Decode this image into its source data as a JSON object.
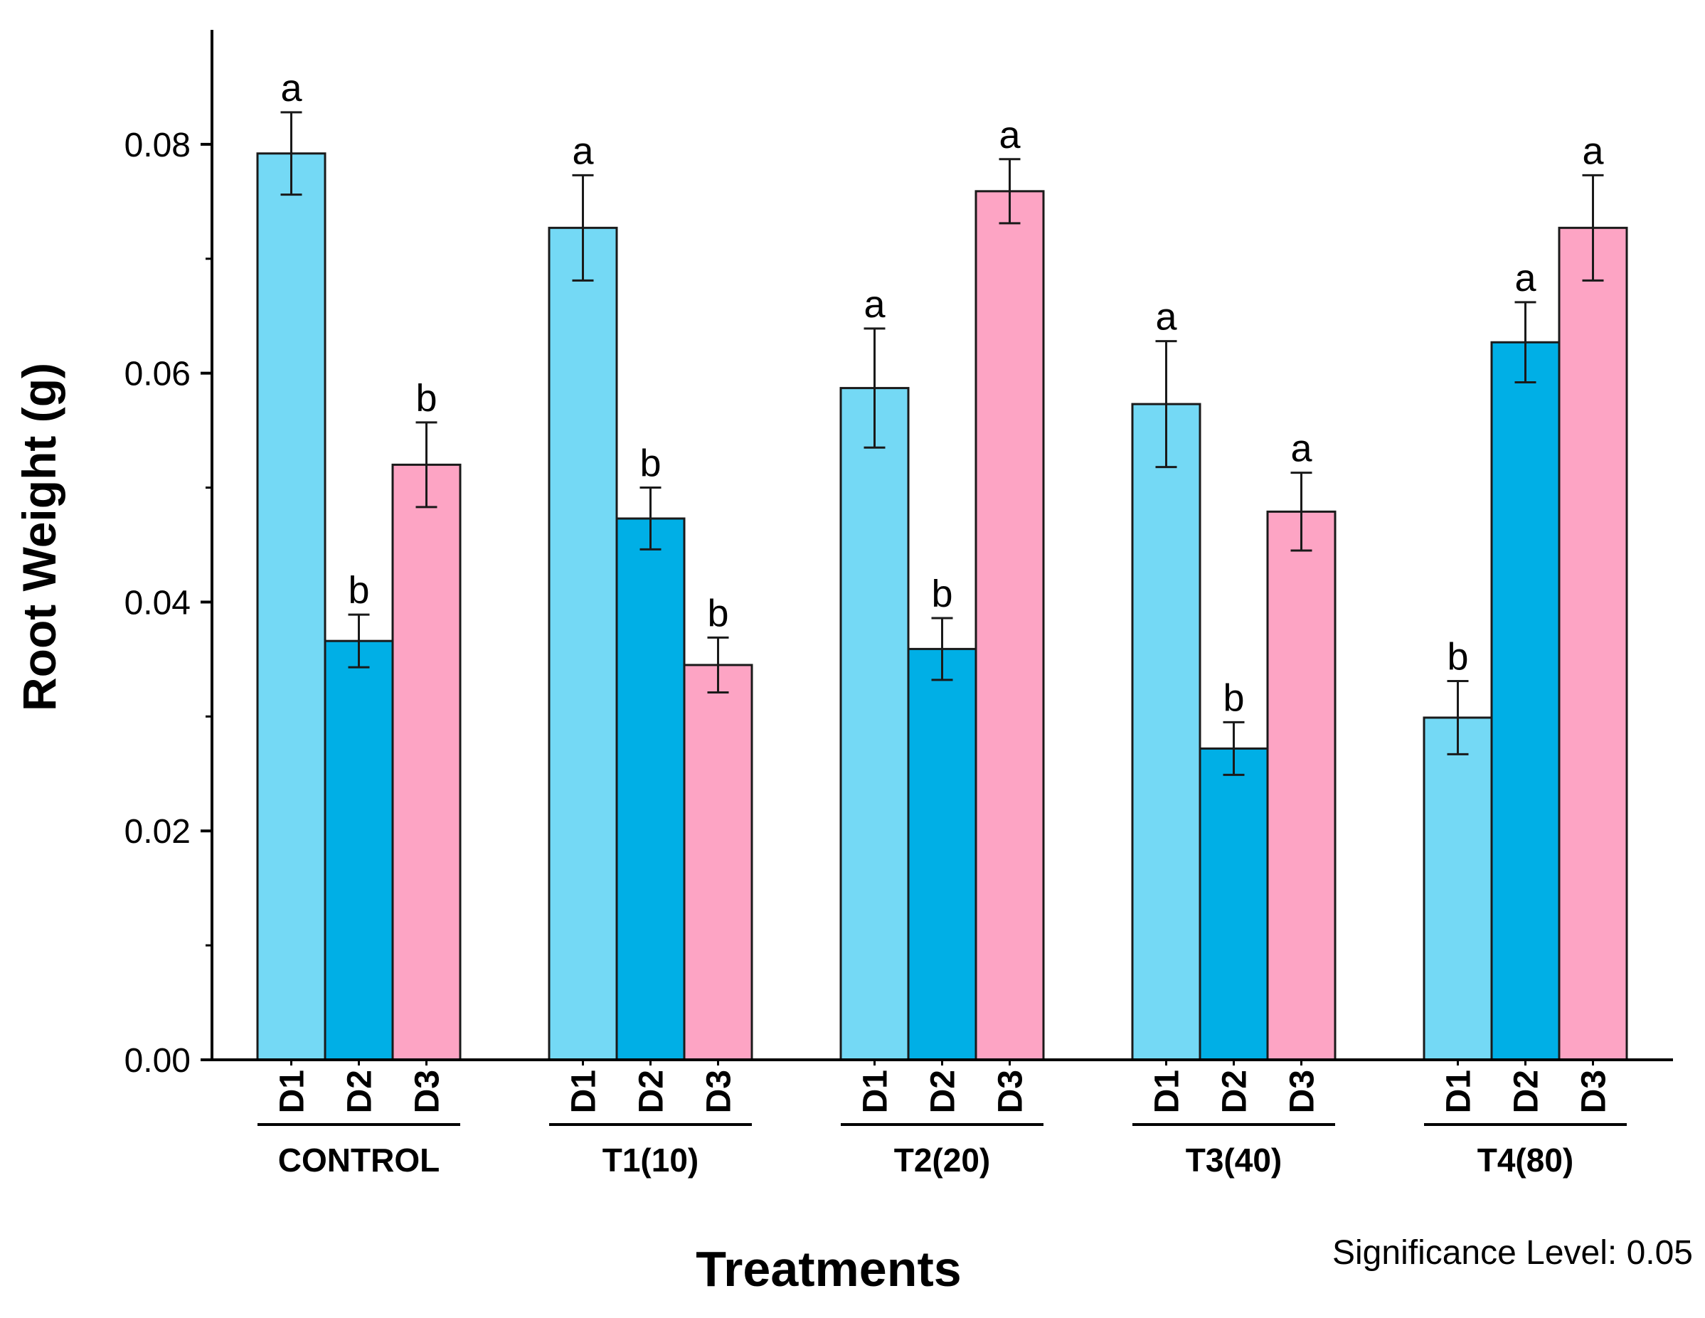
{
  "chart_data": {
    "type": "bar",
    "xlabel": "Treatments",
    "ylabel": "Root Weight (g)",
    "ylim": [
      0,
      0.09
    ],
    "yticks": [
      "0.00",
      "0.02",
      "0.04",
      "0.06",
      "0.08"
    ],
    "ytick_values": [
      0,
      0.02,
      0.04,
      0.06,
      0.08
    ],
    "grid": false,
    "groups": [
      "CONTROL",
      "T1(10)",
      "T2(20)",
      "T3(40)",
      "T4(80)"
    ],
    "sub_categories": [
      "D1",
      "D2",
      "D3"
    ],
    "series": [
      {
        "name": "D1",
        "color": "#74d9f5",
        "values": [
          0.0792,
          0.0727,
          0.0587,
          0.0573,
          0.0299
        ],
        "errors": [
          0.0036,
          0.0046,
          0.0052,
          0.0055,
          0.0032
        ],
        "letters": [
          "a",
          "a",
          "a",
          "a",
          "b"
        ]
      },
      {
        "name": "D2",
        "color": "#00afe6",
        "values": [
          0.0366,
          0.0473,
          0.0359,
          0.0272,
          0.0627
        ],
        "errors": [
          0.0023,
          0.0027,
          0.0027,
          0.0023,
          0.0035
        ],
        "letters": [
          "b",
          "b",
          "b",
          "b",
          "a"
        ]
      },
      {
        "name": "D3",
        "color": "#fda4c4",
        "values": [
          0.052,
          0.0345,
          0.0759,
          0.0479,
          0.0727
        ],
        "errors": [
          0.0037,
          0.0024,
          0.0028,
          0.0034,
          0.0046
        ],
        "letters": [
          "b",
          "b",
          "a",
          "a",
          "a"
        ]
      }
    ],
    "annotation": "Significance Level: 0.05"
  }
}
